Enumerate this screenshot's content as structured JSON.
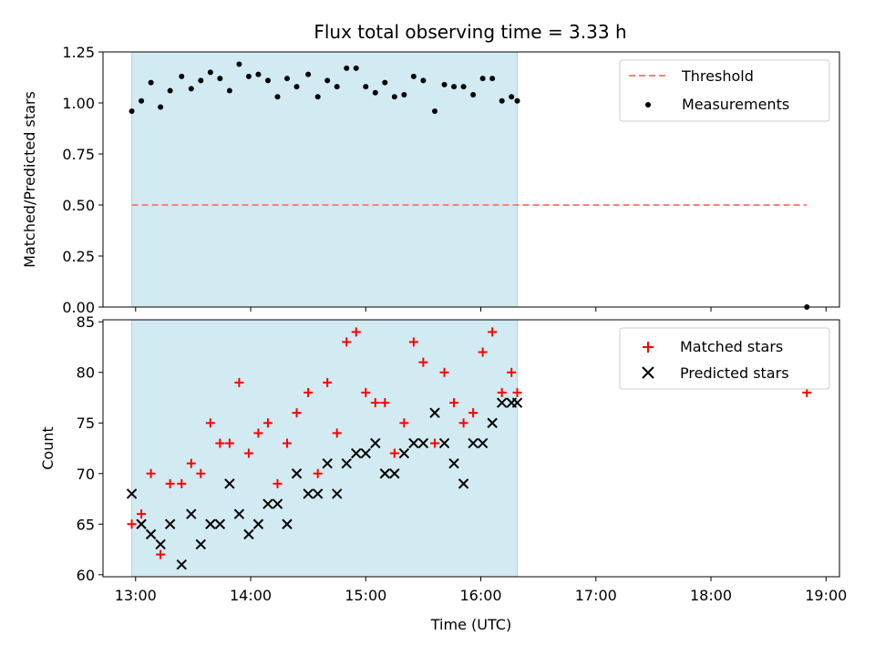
{
  "chart_data": [
    {
      "type": "scatter",
      "title": "Flux total observing time = 3.33 h",
      "xlabel": "",
      "ylabel": "Matched/Predicted stars",
      "xlim": [
        "12:43",
        "19:07"
      ],
      "ylim": [
        0,
        1.25
      ],
      "yticks": [
        "0.00",
        "0.25",
        "0.50",
        "0.75",
        "1.00",
        "1.25"
      ],
      "ytick_values": [
        0,
        0.25,
        0.5,
        0.75,
        1.0,
        1.25
      ],
      "xticks": [
        "13:00",
        "14:00",
        "15:00",
        "16:00",
        "17:00",
        "18:00",
        "19:00"
      ],
      "x_tick_labels_shown": false,
      "shaded_interval": {
        "x": [
          "12:58",
          "16:19"
        ],
        "color": "#add8e6"
      },
      "legend_position": "top-right",
      "threshold": {
        "name": "Threshold",
        "y": 0.5,
        "x": [
          "12:58",
          "18:50"
        ],
        "color": "#ff7f7f",
        "style": "dashed"
      },
      "series": [
        {
          "name": "Measurements",
          "color": "#000000",
          "marker": "dot",
          "points": [
            [
              "12:58",
              0.96
            ],
            [
              "13:03",
              1.01
            ],
            [
              "13:08",
              1.1
            ],
            [
              "13:13",
              0.98
            ],
            [
              "13:18",
              1.06
            ],
            [
              "13:24",
              1.13
            ],
            [
              "13:29",
              1.07
            ],
            [
              "13:34",
              1.11
            ],
            [
              "13:39",
              1.15
            ],
            [
              "13:44",
              1.12
            ],
            [
              "13:49",
              1.06
            ],
            [
              "13:54",
              1.19
            ],
            [
              "13:59",
              1.13
            ],
            [
              "14:04",
              1.14
            ],
            [
              "14:09",
              1.11
            ],
            [
              "14:14",
              1.03
            ],
            [
              "14:19",
              1.12
            ],
            [
              "14:24",
              1.08
            ],
            [
              "14:30",
              1.14
            ],
            [
              "14:35",
              1.03
            ],
            [
              "14:40",
              1.11
            ],
            [
              "14:45",
              1.08
            ],
            [
              "14:50",
              1.17
            ],
            [
              "14:55",
              1.17
            ],
            [
              "15:00",
              1.08
            ],
            [
              "15:05",
              1.05
            ],
            [
              "15:10",
              1.1
            ],
            [
              "15:15",
              1.03
            ],
            [
              "15:20",
              1.04
            ],
            [
              "15:25",
              1.13
            ],
            [
              "15:30",
              1.11
            ],
            [
              "15:36",
              0.96
            ],
            [
              "15:41",
              1.09
            ],
            [
              "15:46",
              1.08
            ],
            [
              "15:51",
              1.08
            ],
            [
              "15:56",
              1.04
            ],
            [
              "16:01",
              1.12
            ],
            [
              "16:06",
              1.12
            ],
            [
              "16:11",
              1.01
            ],
            [
              "16:16",
              1.03
            ],
            [
              "16:19",
              1.01
            ],
            [
              "18:50",
              0.0
            ]
          ]
        }
      ]
    },
    {
      "type": "scatter",
      "title": "",
      "xlabel": "Time (UTC)",
      "ylabel": "Count",
      "xlim": [
        "12:43",
        "19:07"
      ],
      "ylim": [
        59.8,
        85.2
      ],
      "yticks": [
        "60",
        "65",
        "70",
        "75",
        "80",
        "85"
      ],
      "ytick_values": [
        60,
        65,
        70,
        75,
        80,
        85
      ],
      "xticks": [
        "13:00",
        "14:00",
        "15:00",
        "16:00",
        "17:00",
        "18:00",
        "19:00"
      ],
      "shaded_interval": {
        "x": [
          "12:58",
          "16:19"
        ],
        "color": "#add8e6"
      },
      "legend_position": "top-right",
      "series": [
        {
          "name": "Matched stars",
          "color": "#ff0000",
          "marker": "plus",
          "points": [
            [
              "12:58",
              65
            ],
            [
              "13:03",
              66
            ],
            [
              "13:08",
              70
            ],
            [
              "13:13",
              62
            ],
            [
              "13:18",
              69
            ],
            [
              "13:24",
              69
            ],
            [
              "13:29",
              71
            ],
            [
              "13:34",
              70
            ],
            [
              "13:39",
              75
            ],
            [
              "13:44",
              73
            ],
            [
              "13:49",
              73
            ],
            [
              "13:54",
              79
            ],
            [
              "13:59",
              72
            ],
            [
              "14:04",
              74
            ],
            [
              "14:09",
              75
            ],
            [
              "14:14",
              69
            ],
            [
              "14:19",
              73
            ],
            [
              "14:24",
              76
            ],
            [
              "14:30",
              78
            ],
            [
              "14:35",
              70
            ],
            [
              "14:40",
              79
            ],
            [
              "14:45",
              74
            ],
            [
              "14:50",
              83
            ],
            [
              "14:55",
              84
            ],
            [
              "15:00",
              78
            ],
            [
              "15:05",
              77
            ],
            [
              "15:10",
              77
            ],
            [
              "15:15",
              72
            ],
            [
              "15:20",
              75
            ],
            [
              "15:25",
              83
            ],
            [
              "15:30",
              81
            ],
            [
              "15:36",
              73
            ],
            [
              "15:41",
              80
            ],
            [
              "15:46",
              77
            ],
            [
              "15:51",
              75
            ],
            [
              "15:56",
              76
            ],
            [
              "16:01",
              82
            ],
            [
              "16:06",
              84
            ],
            [
              "16:11",
              78
            ],
            [
              "16:16",
              80
            ],
            [
              "16:19",
              78
            ],
            [
              "18:50",
              78
            ]
          ]
        },
        {
          "name": "Predicted stars",
          "color": "#000000",
          "marker": "x",
          "points": [
            [
              "12:58",
              68
            ],
            [
              "13:03",
              65
            ],
            [
              "13:08",
              64
            ],
            [
              "13:13",
              63
            ],
            [
              "13:18",
              65
            ],
            [
              "13:24",
              61
            ],
            [
              "13:29",
              66
            ],
            [
              "13:34",
              63
            ],
            [
              "13:39",
              65
            ],
            [
              "13:44",
              65
            ],
            [
              "13:49",
              69
            ],
            [
              "13:54",
              66
            ],
            [
              "13:59",
              64
            ],
            [
              "14:04",
              65
            ],
            [
              "14:09",
              67
            ],
            [
              "14:14",
              67
            ],
            [
              "14:19",
              65
            ],
            [
              "14:24",
              70
            ],
            [
              "14:30",
              68
            ],
            [
              "14:35",
              68
            ],
            [
              "14:40",
              71
            ],
            [
              "14:45",
              68
            ],
            [
              "14:50",
              71
            ],
            [
              "14:55",
              72
            ],
            [
              "15:00",
              72
            ],
            [
              "15:05",
              73
            ],
            [
              "15:10",
              70
            ],
            [
              "15:15",
              70
            ],
            [
              "15:20",
              72
            ],
            [
              "15:25",
              73
            ],
            [
              "15:30",
              73
            ],
            [
              "15:36",
              76
            ],
            [
              "15:41",
              73
            ],
            [
              "15:46",
              71
            ],
            [
              "15:51",
              69
            ],
            [
              "15:56",
              73
            ],
            [
              "16:01",
              73
            ],
            [
              "16:06",
              75
            ],
            [
              "16:11",
              77
            ],
            [
              "16:16",
              77
            ],
            [
              "16:19",
              77
            ]
          ]
        }
      ]
    }
  ]
}
